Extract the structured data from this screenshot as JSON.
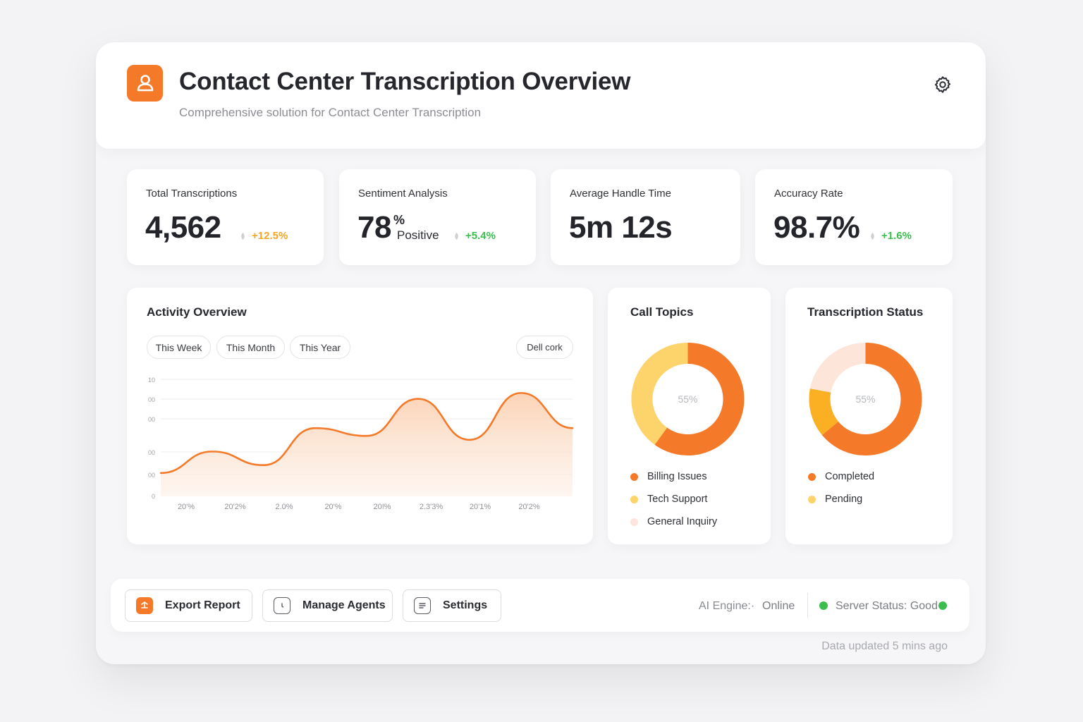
{
  "header": {
    "title": "Contact Center Transcription Overview",
    "subtitle": "Comprehensive solution for Contact Center Transcription"
  },
  "kpis": [
    {
      "label": "Total Transcriptions",
      "value": "4,562",
      "delta": "+12.5%",
      "delta_color": "#f5a623"
    },
    {
      "label": "Sentiment Analysis",
      "value": "78",
      "value_suffix": "%",
      "value_caption": "Positive",
      "delta": "+5.4%",
      "delta_color": "#3bbd4f"
    },
    {
      "label": "Average Handle Time",
      "value": "5m 12s"
    },
    {
      "label": "Accuracy Rate",
      "value": "98.7%",
      "delta": "+1.6%",
      "delta_color": "#3bbd4f"
    }
  ],
  "activity": {
    "title": "Activity Overview",
    "filters": [
      "This Week",
      "This Month",
      "This Year"
    ],
    "action_label": "Dell cork"
  },
  "chart_data": {
    "type": "area",
    "title": "Activity Overview",
    "y_tick_labels": [
      "10",
      "00",
      "00",
      "00",
      "00",
      "0"
    ],
    "x_tick_labels": [
      "20'%",
      "20'2%",
      "2.0%",
      "20'%",
      "20!%",
      "2.3'3%",
      "20'1%",
      "20'2%"
    ],
    "values": [
      12,
      23,
      16,
      35,
      31,
      50,
      29,
      53,
      35
    ],
    "ylim": [
      0,
      60
    ],
    "line_color": "#f47a2a",
    "fill_color": "#fde3d1",
    "grid": true
  },
  "call_topics": {
    "title": "Call Topics",
    "center_label": "55%",
    "segments": [
      {
        "label": "Billing Issues",
        "value": 60,
        "color": "#f47a2a"
      },
      {
        "label": "Tech Support",
        "value": 40,
        "color": "#fdd36b"
      },
      {
        "label": "General Inquiry",
        "value": 0,
        "color": "#fde4dc"
      }
    ]
  },
  "transcription_status": {
    "title": "Transcription Status",
    "center_label": "55%",
    "segments": [
      {
        "label": "Completed",
        "value": 64,
        "color": "#f47a2a"
      },
      {
        "label": "Pending",
        "value": 14,
        "color": "#fbb024"
      },
      {
        "label": "",
        "value": 22,
        "color": "#fde6d9"
      }
    ]
  },
  "actions": {
    "export": "Export Report",
    "agents": "Manage Agents",
    "settings": "Settings"
  },
  "status": {
    "ai_engine_label": "AI Engine:·",
    "ai_engine_value": "Online",
    "server_status": "Server Status: Good"
  },
  "footer": {
    "updated": "Data updated 5 mins ago"
  }
}
